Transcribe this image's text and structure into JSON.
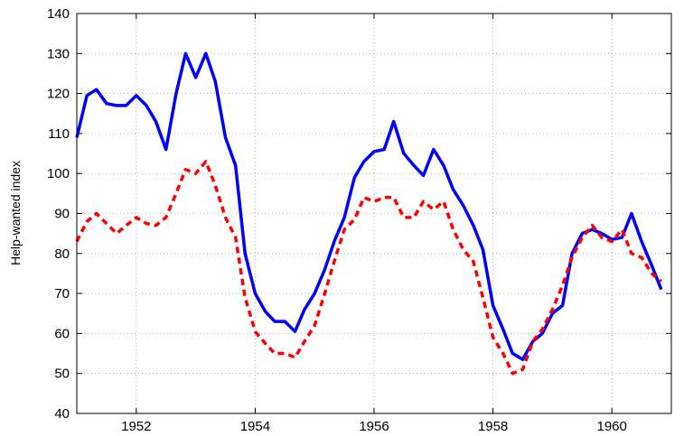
{
  "chart_data": {
    "type": "line",
    "y_label": "Help-wanted index",
    "x": [
      1951,
      1951.17,
      1951.33,
      1951.5,
      1951.67,
      1951.83,
      1952,
      1952.17,
      1952.33,
      1952.5,
      1952.67,
      1952.83,
      1953,
      1953.17,
      1953.33,
      1953.5,
      1953.67,
      1953.83,
      1954,
      1954.17,
      1954.33,
      1954.5,
      1954.67,
      1954.83,
      1955,
      1955.17,
      1955.33,
      1955.5,
      1955.67,
      1955.83,
      1956,
      1956.17,
      1956.33,
      1956.5,
      1956.67,
      1956.83,
      1957,
      1957.17,
      1957.33,
      1957.5,
      1957.67,
      1957.83,
      1958,
      1958.17,
      1958.33,
      1958.5,
      1958.67,
      1958.83,
      1959,
      1959.17,
      1959.33,
      1959.5,
      1959.67,
      1959.83,
      1960,
      1960.17,
      1960.33,
      1960.5,
      1960.67,
      1960.83
    ],
    "series": [
      {
        "color": "#0000ff",
        "style": "solid",
        "values": [
          109,
          119.5,
          121,
          117.5,
          117,
          117,
          119.5,
          117,
          113,
          106,
          120,
          130,
          124,
          130,
          123,
          109,
          102,
          80,
          70,
          65.5,
          63,
          63,
          60.5,
          66,
          70,
          76,
          83,
          89,
          99,
          103,
          105.5,
          106,
          113,
          105,
          102,
          99.5,
          106,
          102,
          96,
          92,
          87,
          81,
          67,
          61,
          55,
          53.5,
          58,
          60,
          65,
          67,
          80,
          85,
          86,
          85,
          83.5,
          84,
          90,
          83,
          77,
          71
        ]
      },
      {
        "color": "#ff0000",
        "style": "dashed",
        "values": [
          83,
          88,
          90,
          87.5,
          85,
          87,
          89,
          87.5,
          87,
          89,
          95,
          101,
          100,
          103,
          97,
          89,
          84,
          69,
          60.5,
          57.5,
          55,
          55,
          54,
          58,
          62,
          70,
          78,
          86,
          88.5,
          94,
          93,
          94,
          94,
          89,
          89,
          93,
          91,
          93,
          86,
          81,
          78,
          69,
          59,
          55,
          50,
          51,
          58,
          61,
          66,
          72,
          79,
          84,
          87,
          84,
          83,
          86,
          80,
          79,
          75,
          73
        ]
      }
    ],
    "xlim": [
      1951,
      1961
    ],
    "xticks": [
      1952,
      1954,
      1956,
      1958,
      1960
    ],
    "ylim": [
      40,
      140
    ],
    "yticks": [
      40,
      50,
      60,
      70,
      80,
      90,
      100,
      110,
      120,
      130,
      140
    ],
    "grid": true
  }
}
